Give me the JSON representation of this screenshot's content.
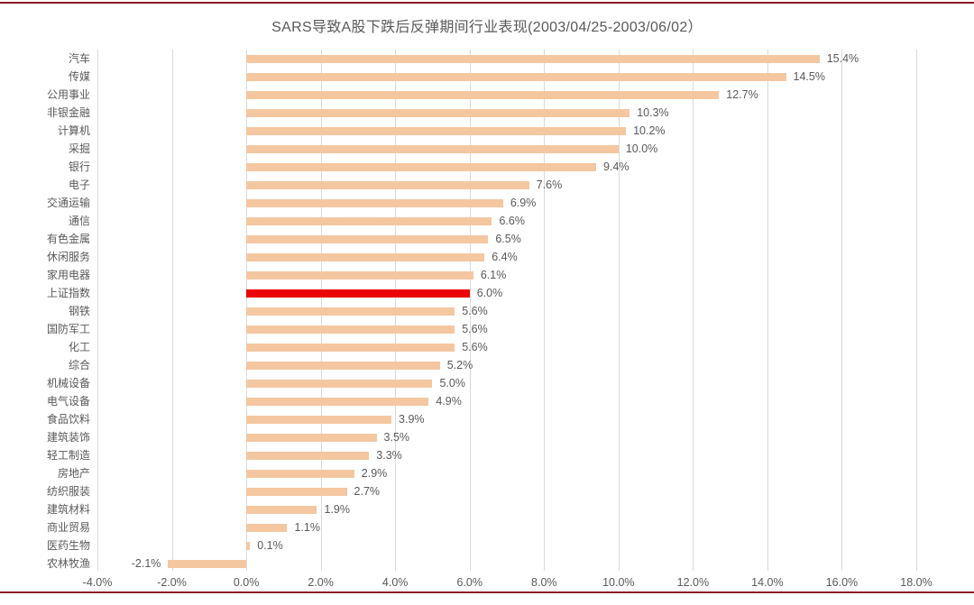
{
  "chart_data": {
    "type": "bar",
    "orientation": "horizontal",
    "title": "SARS导致A股下跌后反弹期间行业表现(2003/04/25-2003/06/02）",
    "categories": [
      "汽车",
      "传媒",
      "公用事业",
      "非银金融",
      "计算机",
      "采掘",
      "银行",
      "电子",
      "交通运输",
      "通信",
      "有色金属",
      "休闲服务",
      "家用电器",
      "上证指数",
      "钢铁",
      "国防军工",
      "化工",
      "综合",
      "机械设备",
      "电气设备",
      "食品饮料",
      "建筑装饰",
      "轻工制造",
      "房地产",
      "纺织服装",
      "建筑材料",
      "商业贸易",
      "医药生物",
      "农林牧渔"
    ],
    "values": [
      15.4,
      14.5,
      12.7,
      10.3,
      10.2,
      10.0,
      9.4,
      7.6,
      6.9,
      6.6,
      6.5,
      6.4,
      6.1,
      6.0,
      5.6,
      5.6,
      5.6,
      5.2,
      5.0,
      4.9,
      3.9,
      3.5,
      3.3,
      2.9,
      2.7,
      1.9,
      1.1,
      0.1,
      -2.1
    ],
    "value_labels": [
      "15.4%",
      "14.5%",
      "12.7%",
      "10.3%",
      "10.2%",
      "10.0%",
      "9.4%",
      "7.6%",
      "6.9%",
      "6.6%",
      "6.5%",
      "6.4%",
      "6.1%",
      "6.0%",
      "5.6%",
      "5.6%",
      "5.6%",
      "5.2%",
      "5.0%",
      "4.9%",
      "3.9%",
      "3.5%",
      "3.3%",
      "2.9%",
      "2.7%",
      "1.9%",
      "1.1%",
      "0.1%",
      "-2.1%"
    ],
    "highlight_category": "上证指数",
    "xlabel": "",
    "ylabel": "",
    "xlim": [
      -4,
      18
    ],
    "x_ticks": [
      "-4.0%",
      "-2.0%",
      "0.0%",
      "2.0%",
      "4.0%",
      "6.0%",
      "8.0%",
      "10.0%",
      "12.0%",
      "14.0%",
      "16.0%",
      "18.0%"
    ],
    "grid": "vertical-only",
    "legend": "none",
    "colors": {
      "bar": "#F4C7A1",
      "highlight_bar": "#EA0606",
      "gridline": "#D9D9D9",
      "text": "#595959",
      "divider_line": "#8B1A2B",
      "background": "#FFFFFF"
    }
  }
}
